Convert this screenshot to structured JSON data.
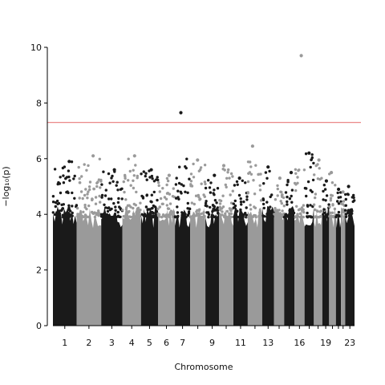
{
  "chart_data": {
    "type": "scatter",
    "subtype": "manhattan",
    "xlabel": "Chromosome",
    "ylabel": "−log₁₀(p)",
    "ylim": [
      0,
      10
    ],
    "yticks": [
      0,
      2,
      4,
      6,
      8,
      10
    ],
    "grid": false,
    "legend": "none",
    "threshold": {
      "value": 7.3,
      "color": "#e87a7a"
    },
    "colors": {
      "odd": "#1a1a1a",
      "even": "#9a9a9a"
    },
    "chromosomes": [
      {
        "chr": "1",
        "shown_label": "1",
        "max": 5.9
      },
      {
        "chr": "2",
        "shown_label": "2",
        "max": 6.1
      },
      {
        "chr": "3",
        "shown_label": "3",
        "max": 5.6
      },
      {
        "chr": "4",
        "shown_label": "4",
        "max": 6.1
      },
      {
        "chr": "5",
        "shown_label": "5",
        "max": 5.6
      },
      {
        "chr": "6",
        "shown_label": "6",
        "max": 5.4
      },
      {
        "chr": "7",
        "shown_label": "7",
        "max": 7.65
      },
      {
        "chr": "8",
        "shown_label": "",
        "max": 5.95
      },
      {
        "chr": "9",
        "shown_label": "9",
        "max": 5.4
      },
      {
        "chr": "10",
        "shown_label": "",
        "max": 5.75
      },
      {
        "chr": "11",
        "shown_label": "11",
        "max": 5.3
      },
      {
        "chr": "12",
        "shown_label": "",
        "max": 6.45
      },
      {
        "chr": "13",
        "shown_label": "13",
        "max": 5.7
      },
      {
        "chr": "14",
        "shown_label": "",
        "max": 5.3
      },
      {
        "chr": "15",
        "shown_label": "",
        "max": 5.5
      },
      {
        "chr": "16",
        "shown_label": "16",
        "max": 9.7
      },
      {
        "chr": "17",
        "shown_label": "",
        "max": 6.2
      },
      {
        "chr": "18",
        "shown_label": "",
        "max": 5.95
      },
      {
        "chr": "19",
        "shown_label": "19",
        "max": 5.2
      },
      {
        "chr": "20",
        "shown_label": "",
        "max": 5.5
      },
      {
        "chr": "21",
        "shown_label": "",
        "max": 4.9
      },
      {
        "chr": "22",
        "shown_label": "",
        "max": 4.8
      },
      {
        "chr": "23",
        "shown_label": "23",
        "max": 5.0
      }
    ]
  }
}
